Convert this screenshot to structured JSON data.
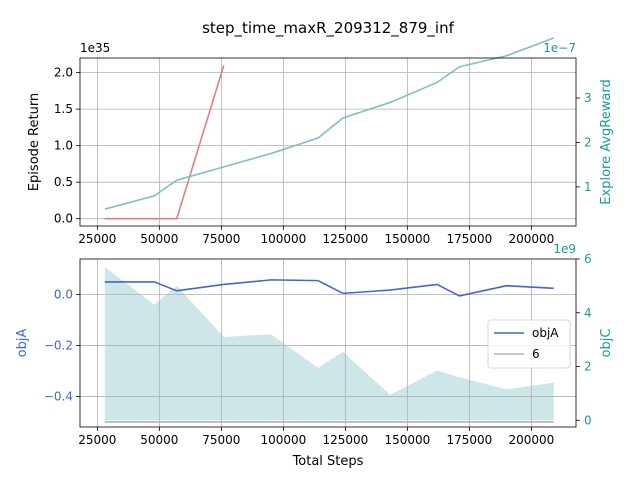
{
  "title": "step_time_maxR_209312_879_inf",
  "colors": {
    "episode_return": "#e07f78",
    "avg_reward": "#7fbfc4",
    "objA": "#4466cc",
    "six": "#b0b0b0",
    "objC_fill": "#b2d8da",
    "teal_label": "#1a9a9a"
  },
  "chart_data": [
    {
      "type": "line",
      "title": "step_time_maxR_209312_879_inf",
      "xlabel": "",
      "ylabel": "Episode Return",
      "y_multiplier": "1e35",
      "y2label": "Explore AvgReward",
      "y2_multiplier": "1e−7",
      "xlim": [
        18000,
        218000
      ],
      "ylim": [
        -0.1,
        2.2
      ],
      "y2lim": [
        0.12,
        3.9
      ],
      "x_ticks": [
        25000,
        50000,
        75000,
        100000,
        125000,
        150000,
        175000,
        200000
      ],
      "x_tick_labels": [
        "25000",
        "50000",
        "75000",
        "100000",
        "125000",
        "150000",
        "175000",
        "200000"
      ],
      "y_ticks": [
        0.0,
        0.5,
        1.0,
        1.5,
        2.0
      ],
      "y_tick_labels": [
        "0.0",
        "0.5",
        "1.0",
        "1.5",
        "2.0"
      ],
      "y2_ticks": [
        1,
        2,
        3
      ],
      "y2_tick_labels": [
        "1",
        "2",
        "3"
      ],
      "grid": true,
      "series": [
        {
          "axis": "left",
          "x": [
            28000,
            48000,
            57000,
            76000
          ],
          "y": [
            0.0,
            0.0,
            0.0,
            2.1
          ]
        },
        {
          "axis": "right",
          "x": [
            28000,
            48000,
            57000,
            76000,
            95000,
            114000,
            124000,
            143000,
            162000,
            171000,
            190000,
            209000
          ],
          "y": [
            0.5,
            0.8,
            1.15,
            1.45,
            1.75,
            2.1,
            2.55,
            2.9,
            3.35,
            3.7,
            3.95,
            4.35
          ]
        }
      ]
    },
    {
      "type": "line",
      "xlabel": "Total Steps",
      "ylabel": "objA",
      "y2label": "objC",
      "y2_multiplier": "1e9",
      "xlim": [
        18000,
        218000
      ],
      "ylim": [
        -0.52,
        0.14
      ],
      "y2lim": [
        -0.25,
        6.0
      ],
      "x_ticks": [
        25000,
        50000,
        75000,
        100000,
        125000,
        150000,
        175000,
        200000
      ],
      "x_tick_labels": [
        "25000",
        "50000",
        "75000",
        "100000",
        "125000",
        "150000",
        "175000",
        "200000"
      ],
      "y_ticks": [
        0.0,
        -0.2,
        -0.4
      ],
      "y_tick_labels": [
        "0.0",
        "−0.2",
        "−0.4"
      ],
      "y2_ticks": [
        0,
        2,
        4,
        6
      ],
      "y2_tick_labels": [
        "0",
        "2",
        "4",
        "6"
      ],
      "grid": true,
      "legend_position": "center-right",
      "series": [
        {
          "name": "objA",
          "axis": "left",
          "x": [
            28000,
            48000,
            57000,
            76000,
            95000,
            114000,
            124000,
            143000,
            162000,
            171000,
            190000,
            209000
          ],
          "y": [
            0.05,
            0.05,
            0.015,
            0.04,
            0.058,
            0.055,
            0.005,
            0.018,
            0.04,
            -0.005,
            0.035,
            0.025
          ]
        },
        {
          "name": "6",
          "axis": "left",
          "x": [
            28000,
            209000
          ],
          "y": [
            -0.5,
            -0.5
          ]
        },
        {
          "type": "area",
          "axis": "right",
          "x": [
            28000,
            48000,
            57000,
            76000,
            95000,
            114000,
            124000,
            143000,
            162000,
            171000,
            190000,
            209000
          ],
          "y": [
            5.7,
            4.3,
            5.0,
            3.1,
            3.2,
            1.95,
            2.55,
            0.95,
            1.85,
            1.6,
            1.15,
            1.4
          ]
        }
      ]
    }
  ]
}
